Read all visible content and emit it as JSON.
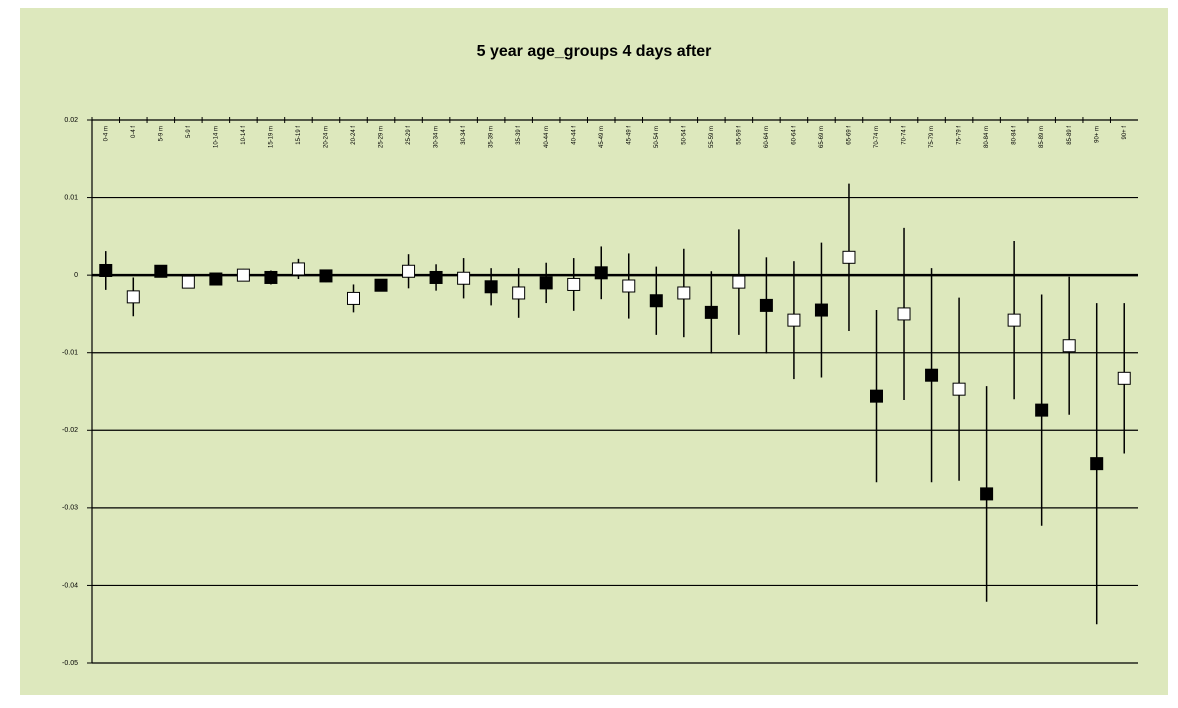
{
  "chart_data": {
    "type": "errorbar",
    "title": "5 year age_groups 4 days after",
    "categories": [
      "0-4 m",
      "0-4 f",
      "5-9 m",
      "5-9 f",
      "10-14 m",
      "10-14 f",
      "15-19 m",
      "15-19 f",
      "20-24 m",
      "20-24 f",
      "25-29 m",
      "25-29 f",
      "30-34 m",
      "30-34 f",
      "35-39 m",
      "35-39 f",
      "40-44 m",
      "40-44 f",
      "45-49 m",
      "45-49 f",
      "50-54 m",
      "50-54 f",
      "55-59 m",
      "55-59 f",
      "60-64 m",
      "60-64 f",
      "65-69 m",
      "65-69 f",
      "70-74 m",
      "70-74 f",
      "75-79 m",
      "75-79 f",
      "80-84 m",
      "80-84 f",
      "85-89 m",
      "85-89 f",
      "90+ m",
      "90+ f"
    ],
    "values": [
      0.0006,
      -0.0028,
      0.0005,
      -0.0009,
      -0.0005,
      0.0,
      -0.0003,
      0.0008,
      -0.0001,
      -0.003,
      -0.0013,
      0.0005,
      -0.0003,
      -0.0004,
      -0.0015,
      -0.0023,
      -0.001,
      -0.0012,
      0.0003,
      -0.0014,
      -0.0033,
      -0.0023,
      -0.0048,
      -0.0009,
      -0.0039,
      -0.0058,
      -0.0045,
      0.0023,
      -0.0156,
      -0.005,
      -0.0129,
      -0.0147,
      -0.0282,
      -0.0058,
      -0.0174,
      -0.0091,
      -0.0243,
      -0.0133
    ],
    "errors": [
      0.0025,
      0.0025,
      0.0005,
      0.0004,
      0.0005,
      0.0008,
      0.0009,
      0.0013,
      0.0008,
      0.0018,
      0.0008,
      0.0022,
      0.0017,
      0.0026,
      0.0024,
      0.0032,
      0.0026,
      0.0034,
      0.0034,
      0.0042,
      0.0044,
      0.0057,
      0.0053,
      0.0068,
      0.0062,
      0.0076,
      0.0087,
      0.0095,
      0.0111,
      0.0111,
      0.0138,
      0.0118,
      0.0139,
      0.0102,
      0.0149,
      0.0089,
      0.0207,
      0.0097
    ],
    "marker_colors": [
      "#000000",
      "#ffffff"
    ],
    "ylim": [
      -0.05,
      0.02
    ],
    "yticks": [
      0.02,
      0.01,
      0,
      -0.01,
      -0.02,
      -0.03,
      -0.04,
      -0.05
    ],
    "grid": true
  }
}
